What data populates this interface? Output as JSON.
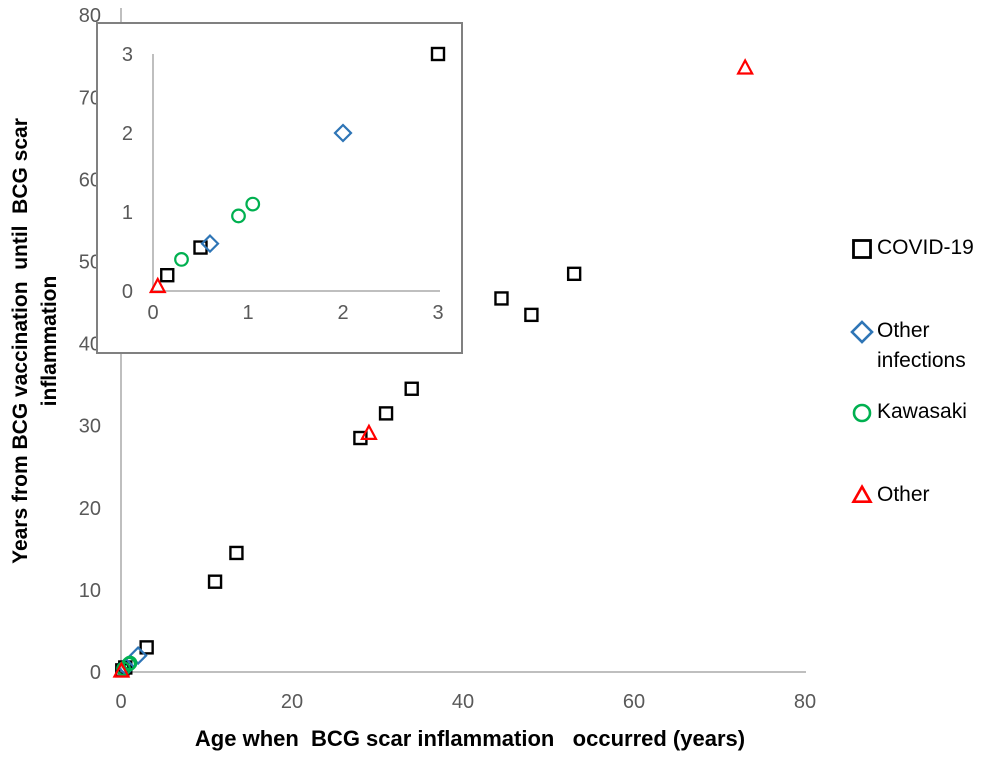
{
  "figure": {
    "xlabel": "Age when  BCG scar inflammation   occurred (years)",
    "ylabel_line1": "Years from BCG vaccination  until  BCG scar",
    "ylabel_line2": "inflammation"
  },
  "legend": [
    {
      "label": "COVID-19",
      "marker": "square",
      "color": "#000000"
    },
    {
      "label": "Other infections",
      "marker": "diamond",
      "color": "#2E75B6"
    },
    {
      "label": "Kawasaki",
      "marker": "circle",
      "color": "#00B050"
    },
    {
      "label": "Other",
      "marker": "triangle",
      "color": "#FF0000"
    }
  ],
  "colors": {
    "axis_line": "#BFBFBF",
    "tick_text": "#595959",
    "inset_border": "#808080",
    "background": "#FFFFFF"
  },
  "chart_data": {
    "type": "scatter",
    "title": "",
    "xlabel": "Age when  BCG scar inflammation   occurred (years)",
    "ylabel": "Years from BCG vaccination until BCG scar inflammation",
    "xlim": [
      0,
      80
    ],
    "ylim": [
      0,
      80
    ],
    "xticks": [
      0,
      20,
      40,
      60,
      80
    ],
    "yticks": [
      0,
      10,
      20,
      30,
      40,
      50,
      60,
      70,
      80
    ],
    "grid": false,
    "legend_position": "right",
    "series": [
      {
        "name": "COVID-19",
        "marker": "square",
        "color": "#000000",
        "points": [
          [
            0.15,
            0.2
          ],
          [
            0.5,
            0.55
          ],
          [
            3,
            3
          ],
          [
            11,
            11
          ],
          [
            13.5,
            14.5
          ],
          [
            28,
            28.5
          ],
          [
            31,
            31.5
          ],
          [
            34,
            34.5
          ],
          [
            44.5,
            45.5
          ],
          [
            48,
            43.5
          ],
          [
            53,
            48.5
          ]
        ]
      },
      {
        "name": "Other infections",
        "marker": "diamond",
        "color": "#2E75B6",
        "points": [
          [
            0.6,
            0.6
          ],
          [
            2,
            2
          ]
        ]
      },
      {
        "name": "Kawasaki",
        "marker": "circle",
        "color": "#00B050",
        "points": [
          [
            0.3,
            0.4
          ],
          [
            0.9,
            0.95
          ],
          [
            1.05,
            1.1
          ]
        ]
      },
      {
        "name": "Other",
        "marker": "triangle",
        "color": "#FF0000",
        "points": [
          [
            0.05,
            0.05
          ],
          [
            29,
            29
          ],
          [
            73,
            73.5
          ]
        ]
      }
    ],
    "inset": {
      "xlim": [
        0,
        3
      ],
      "ylim": [
        0,
        3
      ],
      "xticks": [
        0,
        1,
        2,
        3
      ],
      "yticks": [
        0,
        1,
        2,
        3
      ]
    }
  }
}
